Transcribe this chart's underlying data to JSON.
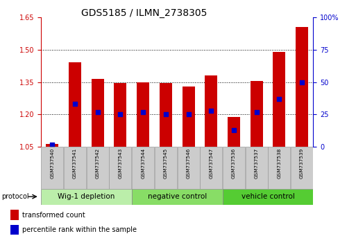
{
  "title": "GDS5185 / ILMN_2738305",
  "samples": [
    "GSM737540",
    "GSM737541",
    "GSM737542",
    "GSM737543",
    "GSM737544",
    "GSM737545",
    "GSM737546",
    "GSM737547",
    "GSM737536",
    "GSM737537",
    "GSM737538",
    "GSM737539"
  ],
  "bar_top": [
    1.065,
    1.44,
    1.365,
    1.345,
    1.35,
    1.345,
    1.33,
    1.38,
    1.19,
    1.355,
    1.49,
    1.605
  ],
  "bar_bottom": 1.05,
  "percentile": [
    2,
    33,
    27,
    25,
    27,
    25,
    25,
    28,
    13,
    27,
    37,
    50
  ],
  "ylim_left": [
    1.05,
    1.65
  ],
  "ylim_right": [
    0,
    100
  ],
  "yticks_left": [
    1.05,
    1.2,
    1.35,
    1.5,
    1.65
  ],
  "yticks_right": [
    0,
    25,
    50,
    75,
    100
  ],
  "groups": [
    {
      "label": "Wig-1 depletion",
      "indices": [
        0,
        1,
        2,
        3
      ],
      "color": "#bbeeaa"
    },
    {
      "label": "negative control",
      "indices": [
        4,
        5,
        6,
        7
      ],
      "color": "#88dd66"
    },
    {
      "label": "vehicle control",
      "indices": [
        8,
        9,
        10,
        11
      ],
      "color": "#55cc33"
    }
  ],
  "bar_color": "#cc0000",
  "dot_color": "#0000cc",
  "left_axis_color": "#cc0000",
  "right_axis_color": "#0000cc",
  "tick_label_fontsize": 7,
  "title_fontsize": 10,
  "group_label_fontsize": 7.5,
  "bar_width": 0.55,
  "dot_size": 18
}
